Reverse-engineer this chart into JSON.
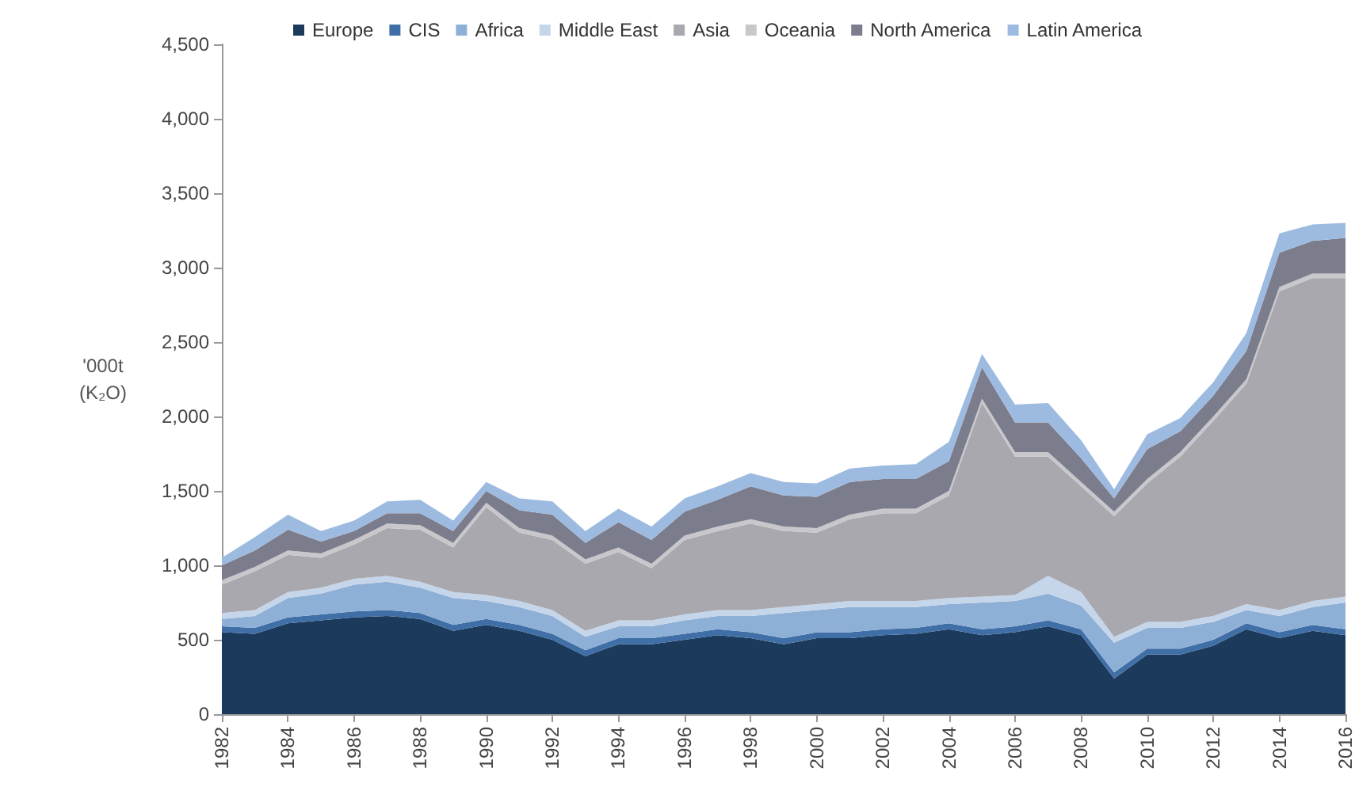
{
  "chart_data": {
    "type": "area",
    "stacked": true,
    "ylabel": "'000t\n(K₂O)",
    "legend": "top",
    "grid": false,
    "marker": "none",
    "x": [
      1982,
      1983,
      1984,
      1985,
      1986,
      1987,
      1988,
      1989,
      1990,
      1991,
      1992,
      1993,
      1994,
      1995,
      1996,
      1997,
      1998,
      1999,
      2000,
      2001,
      2002,
      2003,
      2004,
      2005,
      2006,
      2007,
      2008,
      2009,
      2010,
      2011,
      2012,
      2013,
      2014,
      2015,
      2016
    ],
    "xlim": [
      1982,
      2016
    ],
    "xticks": [
      1982,
      1984,
      1986,
      1988,
      1990,
      1992,
      1994,
      1996,
      1998,
      2000,
      2002,
      2004,
      2006,
      2008,
      2010,
      2012,
      2014,
      2016
    ],
    "ylim": [
      0,
      4500
    ],
    "yticks": [
      0,
      500,
      {
        "value": 1000,
        "label": "1,000"
      },
      {
        "value": 1500,
        "label": "1,500"
      },
      {
        "value": 2000,
        "label": "2,000"
      },
      {
        "value": 2500,
        "label": "2,500"
      },
      {
        "value": 3000,
        "label": "3,000"
      },
      {
        "value": 3500,
        "label": "3,500"
      },
      {
        "value": 4000,
        "label": "4,000"
      },
      {
        "value": 4500,
        "label": "4,500"
      }
    ],
    "series": [
      {
        "name": "Europe",
        "color": "#1b3a5c",
        "values": [
          550,
          540,
          610,
          630,
          650,
          660,
          640,
          560,
          600,
          560,
          500,
          390,
          470,
          470,
          500,
          530,
          510,
          470,
          510,
          510,
          530,
          540,
          570,
          530,
          550,
          590,
          530,
          240,
          400,
          400,
          460,
          570,
          510,
          560,
          530
        ]
      },
      {
        "name": "CIS",
        "color": "#3f6fa6",
        "values": [
          40,
          40,
          40,
          40,
          40,
          40,
          40,
          40,
          40,
          40,
          40,
          40,
          40,
          40,
          40,
          40,
          40,
          40,
          40,
          40,
          40,
          40,
          40,
          40,
          40,
          40,
          40,
          40,
          40,
          40,
          40,
          40,
          40,
          40,
          40
        ]
      },
      {
        "name": "Africa",
        "color": "#8fb0d6",
        "values": [
          50,
          80,
          130,
          140,
          180,
          190,
          170,
          180,
          120,
          120,
          120,
          90,
          80,
          80,
          90,
          90,
          110,
          170,
          150,
          170,
          150,
          140,
          130,
          180,
          170,
          180,
          160,
          200,
          140,
          140,
          120,
          90,
          110,
          120,
          180
        ]
      },
      {
        "name": "Middle East",
        "color": "#c5d6ea",
        "values": [
          40,
          40,
          40,
          40,
          40,
          40,
          40,
          40,
          40,
          40,
          40,
          40,
          40,
          40,
          40,
          40,
          40,
          40,
          40,
          40,
          40,
          40,
          40,
          40,
          40,
          120,
          90,
          40,
          40,
          40,
          40,
          40,
          40,
          40,
          40
        ]
      },
      {
        "name": "Asia",
        "color": "#a8a8ae",
        "values": [
          190,
          260,
          250,
          200,
          230,
          320,
          350,
          300,
          590,
          460,
          470,
          450,
          460,
          350,
          500,
          530,
          580,
          510,
          480,
          550,
          590,
          590,
          690,
          1300,
          930,
          800,
          710,
          810,
          930,
          1110,
          1310,
          1480,
          2140,
          2170,
          2140
        ]
      },
      {
        "name": "Oceania",
        "color": "#c8c8cc",
        "values": [
          30,
          30,
          30,
          30,
          30,
          30,
          30,
          30,
          30,
          30,
          30,
          30,
          30,
          30,
          30,
          30,
          30,
          30,
          30,
          30,
          30,
          30,
          30,
          30,
          30,
          30,
          30,
          30,
          30,
          30,
          30,
          30,
          30,
          30,
          30
        ]
      },
      {
        "name": "North America",
        "color": "#7c7d8c",
        "values": [
          100,
          110,
          140,
          80,
          60,
          70,
          80,
          80,
          80,
          120,
          140,
          110,
          170,
          160,
          160,
          180,
          220,
          210,
          210,
          220,
          200,
          200,
          200,
          210,
          200,
          200,
          160,
          90,
          200,
          140,
          140,
          190,
          230,
          220,
          240
        ]
      },
      {
        "name": "Latin America",
        "color": "#9dbbe0",
        "values": [
          50,
          90,
          100,
          70,
          70,
          80,
          90,
          70,
          60,
          80,
          90,
          80,
          90,
          90,
          90,
          90,
          90,
          90,
          90,
          90,
          90,
          100,
          130,
          90,
          120,
          130,
          120,
          60,
          100,
          90,
          90,
          120,
          130,
          110,
          100
        ]
      }
    ]
  }
}
